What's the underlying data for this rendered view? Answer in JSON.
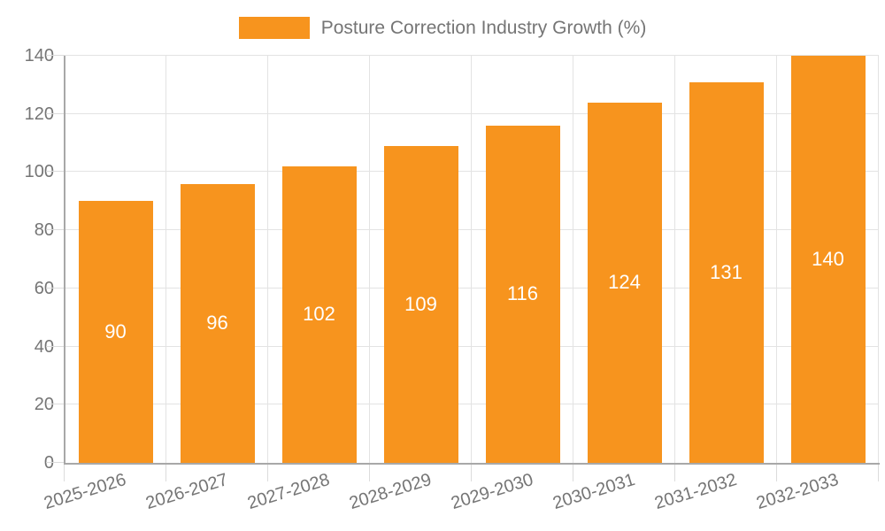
{
  "chart_data": {
    "type": "bar",
    "title": "Posture Correction Industry Growth (%)",
    "series": [
      {
        "name": "Posture Correction Industry Growth (%)",
        "values": [
          90,
          96,
          102,
          109,
          116,
          124,
          131,
          140
        ]
      }
    ],
    "categories": [
      "2025-2026",
      "2026-2027",
      "2027-2028",
      "2028-2029",
      "2029-2030",
      "2030-2031",
      "2031-2032",
      "2032-2033"
    ],
    "value_labels": [
      "90",
      "96",
      "102",
      "109",
      "116",
      "124",
      "131",
      "140"
    ],
    "ytick_labels": [
      "0",
      "20",
      "40",
      "60",
      "80",
      "100",
      "120",
      "140"
    ],
    "ylim": [
      0,
      140
    ],
    "ytick_step": 20,
    "grid": true,
    "legend_position": "top",
    "xlabel": "",
    "ylabel": "",
    "colors": {
      "bar": "#F7941E",
      "bar_value_text": "#FFFFFF",
      "axis_text": "#757575",
      "gridline": "#E3E3E3",
      "axis_line": "#A8A8A8",
      "tick": "#DCDCDC",
      "background": "#FFFFFF"
    }
  }
}
